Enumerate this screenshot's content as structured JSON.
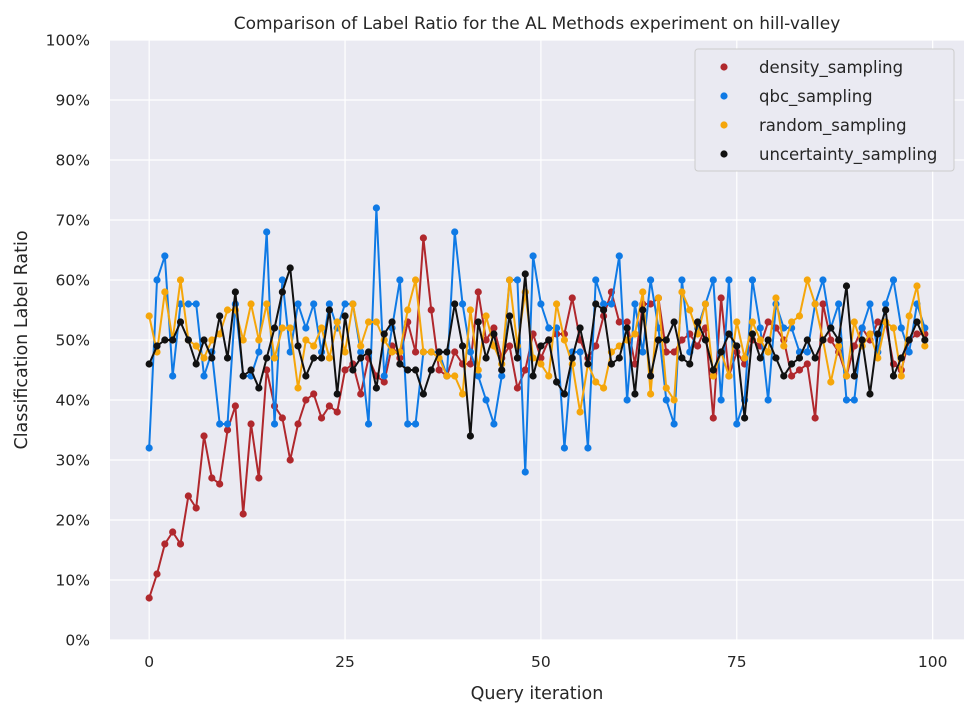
{
  "chart_data": {
    "type": "line",
    "title": "Comparison of Label Ratio for the AL Methods experiment on hill-valley",
    "xlabel": "Query iteration",
    "ylabel": "Classification Label Ratio",
    "xlim": [
      -5,
      104
    ],
    "ylim": [
      0,
      1
    ],
    "x_ticks": [
      0,
      25,
      50,
      75,
      100
    ],
    "x_tick_labels": [
      "0",
      "25",
      "50",
      "75",
      "100"
    ],
    "y_ticks": [
      0,
      0.1,
      0.2,
      0.3,
      0.4,
      0.5,
      0.6,
      0.7,
      0.8,
      0.9,
      1.0
    ],
    "y_tick_labels": [
      "0%",
      "10%",
      "20%",
      "30%",
      "40%",
      "50%",
      "60%",
      "70%",
      "80%",
      "90%",
      "100%"
    ],
    "grid": true,
    "legend_position": "top-right",
    "x": [
      0,
      1,
      2,
      3,
      4,
      5,
      6,
      7,
      8,
      9,
      10,
      11,
      12,
      13,
      14,
      15,
      16,
      17,
      18,
      19,
      20,
      21,
      22,
      23,
      24,
      25,
      26,
      27,
      28,
      29,
      30,
      31,
      32,
      33,
      34,
      35,
      36,
      37,
      38,
      39,
      40,
      41,
      42,
      43,
      44,
      45,
      46,
      47,
      48,
      49,
      50,
      51,
      52,
      53,
      54,
      55,
      56,
      57,
      58,
      59,
      60,
      61,
      62,
      63,
      64,
      65,
      66,
      67,
      68,
      69,
      70,
      71,
      72,
      73,
      74,
      75,
      76,
      77,
      78,
      79,
      80,
      81,
      82,
      83,
      84,
      85,
      86,
      87,
      88,
      89,
      90,
      91,
      92,
      93,
      94,
      95,
      96,
      97,
      98,
      99
    ],
    "series": [
      {
        "name": "density_sampling",
        "color": "#b0282d",
        "values": [
          0.07,
          0.11,
          0.16,
          0.18,
          0.16,
          0.24,
          0.22,
          0.34,
          0.27,
          0.26,
          0.35,
          0.39,
          0.21,
          0.36,
          0.27,
          0.45,
          0.39,
          0.37,
          0.3,
          0.36,
          0.4,
          0.41,
          0.37,
          0.39,
          0.38,
          0.45,
          0.46,
          0.41,
          0.47,
          0.44,
          0.43,
          0.49,
          0.47,
          0.53,
          0.48,
          0.67,
          0.55,
          0.45,
          0.44,
          0.48,
          0.46,
          0.46,
          0.58,
          0.5,
          0.52,
          0.47,
          0.49,
          0.42,
          0.45,
          0.51,
          0.47,
          0.5,
          0.51,
          0.51,
          0.57,
          0.5,
          0.47,
          0.49,
          0.54,
          0.58,
          0.53,
          0.53,
          0.46,
          0.56,
          0.56,
          0.57,
          0.48,
          0.48,
          0.5,
          0.51,
          0.49,
          0.52,
          0.37,
          0.57,
          0.44,
          0.48,
          0.46,
          0.5,
          0.49,
          0.53,
          0.52,
          0.5,
          0.44,
          0.45,
          0.46,
          0.37,
          0.56,
          0.5,
          0.48,
          0.44,
          0.49,
          0.52,
          0.5,
          0.53,
          0.53,
          0.46,
          0.45,
          0.5,
          0.51,
          0.51
        ]
      },
      {
        "name": "qbc_sampling",
        "color": "#0f7ae5",
        "values": [
          0.32,
          0.6,
          0.64,
          0.44,
          0.56,
          0.56,
          0.56,
          0.44,
          0.48,
          0.36,
          0.36,
          0.56,
          0.44,
          0.44,
          0.48,
          0.68,
          0.36,
          0.6,
          0.48,
          0.56,
          0.52,
          0.56,
          0.48,
          0.56,
          0.52,
          0.56,
          0.56,
          0.48,
          0.36,
          0.72,
          0.44,
          0.52,
          0.6,
          0.36,
          0.36,
          0.48,
          0.48,
          0.48,
          0.44,
          0.68,
          0.56,
          0.48,
          0.44,
          0.4,
          0.36,
          0.44,
          0.6,
          0.6,
          0.28,
          0.64,
          0.56,
          0.52,
          0.52,
          0.32,
          0.48,
          0.48,
          0.32,
          0.6,
          0.56,
          0.56,
          0.64,
          0.4,
          0.56,
          0.48,
          0.6,
          0.52,
          0.4,
          0.36,
          0.6,
          0.48,
          0.52,
          0.56,
          0.6,
          0.4,
          0.6,
          0.36,
          0.4,
          0.6,
          0.52,
          0.4,
          0.56,
          0.52,
          0.52,
          0.48,
          0.48,
          0.56,
          0.6,
          0.52,
          0.56,
          0.4,
          0.4,
          0.52,
          0.56,
          0.48,
          0.56,
          0.6,
          0.52,
          0.48,
          0.56,
          0.52
        ]
      },
      {
        "name": "random_sampling",
        "color": "#f5a60a",
        "values": [
          0.54,
          0.48,
          0.58,
          0.5,
          0.6,
          0.5,
          0.49,
          0.47,
          0.5,
          0.51,
          0.55,
          0.55,
          0.5,
          0.56,
          0.5,
          0.56,
          0.47,
          0.52,
          0.52,
          0.42,
          0.5,
          0.49,
          0.52,
          0.47,
          0.53,
          0.48,
          0.56,
          0.49,
          0.53,
          0.53,
          0.5,
          0.48,
          0.48,
          0.55,
          0.6,
          0.48,
          0.48,
          0.47,
          0.44,
          0.44,
          0.41,
          0.55,
          0.45,
          0.54,
          0.49,
          0.46,
          0.6,
          0.49,
          0.58,
          0.47,
          0.46,
          0.44,
          0.56,
          0.5,
          0.46,
          0.38,
          0.46,
          0.43,
          0.42,
          0.48,
          0.49,
          0.5,
          0.51,
          0.58,
          0.41,
          0.57,
          0.42,
          0.4,
          0.58,
          0.55,
          0.51,
          0.56,
          0.44,
          0.48,
          0.44,
          0.53,
          0.47,
          0.53,
          0.5,
          0.48,
          0.57,
          0.49,
          0.53,
          0.54,
          0.6,
          0.56,
          0.5,
          0.43,
          0.49,
          0.44,
          0.53,
          0.49,
          0.51,
          0.47,
          0.53,
          0.52,
          0.44,
          0.54,
          0.59,
          0.49
        ]
      },
      {
        "name": "uncertainty_sampling",
        "color": "#111111",
        "values": [
          0.46,
          0.49,
          0.5,
          0.5,
          0.53,
          0.5,
          0.46,
          0.5,
          0.47,
          0.54,
          0.47,
          0.58,
          0.44,
          0.45,
          0.42,
          0.47,
          0.52,
          0.58,
          0.62,
          0.49,
          0.44,
          0.47,
          0.47,
          0.55,
          0.41,
          0.54,
          0.45,
          0.47,
          0.48,
          0.42,
          0.51,
          0.53,
          0.46,
          0.45,
          0.45,
          0.41,
          0.45,
          0.48,
          0.48,
          0.56,
          0.49,
          0.34,
          0.53,
          0.47,
          0.51,
          0.45,
          0.54,
          0.47,
          0.61,
          0.44,
          0.49,
          0.5,
          0.43,
          0.41,
          0.47,
          0.52,
          0.46,
          0.56,
          0.55,
          0.46,
          0.47,
          0.52,
          0.41,
          0.55,
          0.44,
          0.5,
          0.5,
          0.53,
          0.47,
          0.46,
          0.53,
          0.5,
          0.45,
          0.48,
          0.51,
          0.49,
          0.37,
          0.51,
          0.47,
          0.5,
          0.47,
          0.44,
          0.46,
          0.47,
          0.5,
          0.47,
          0.5,
          0.52,
          0.5,
          0.59,
          0.44,
          0.5,
          0.41,
          0.51,
          0.55,
          0.44,
          0.47,
          0.5,
          0.53,
          0.5
        ]
      }
    ]
  }
}
